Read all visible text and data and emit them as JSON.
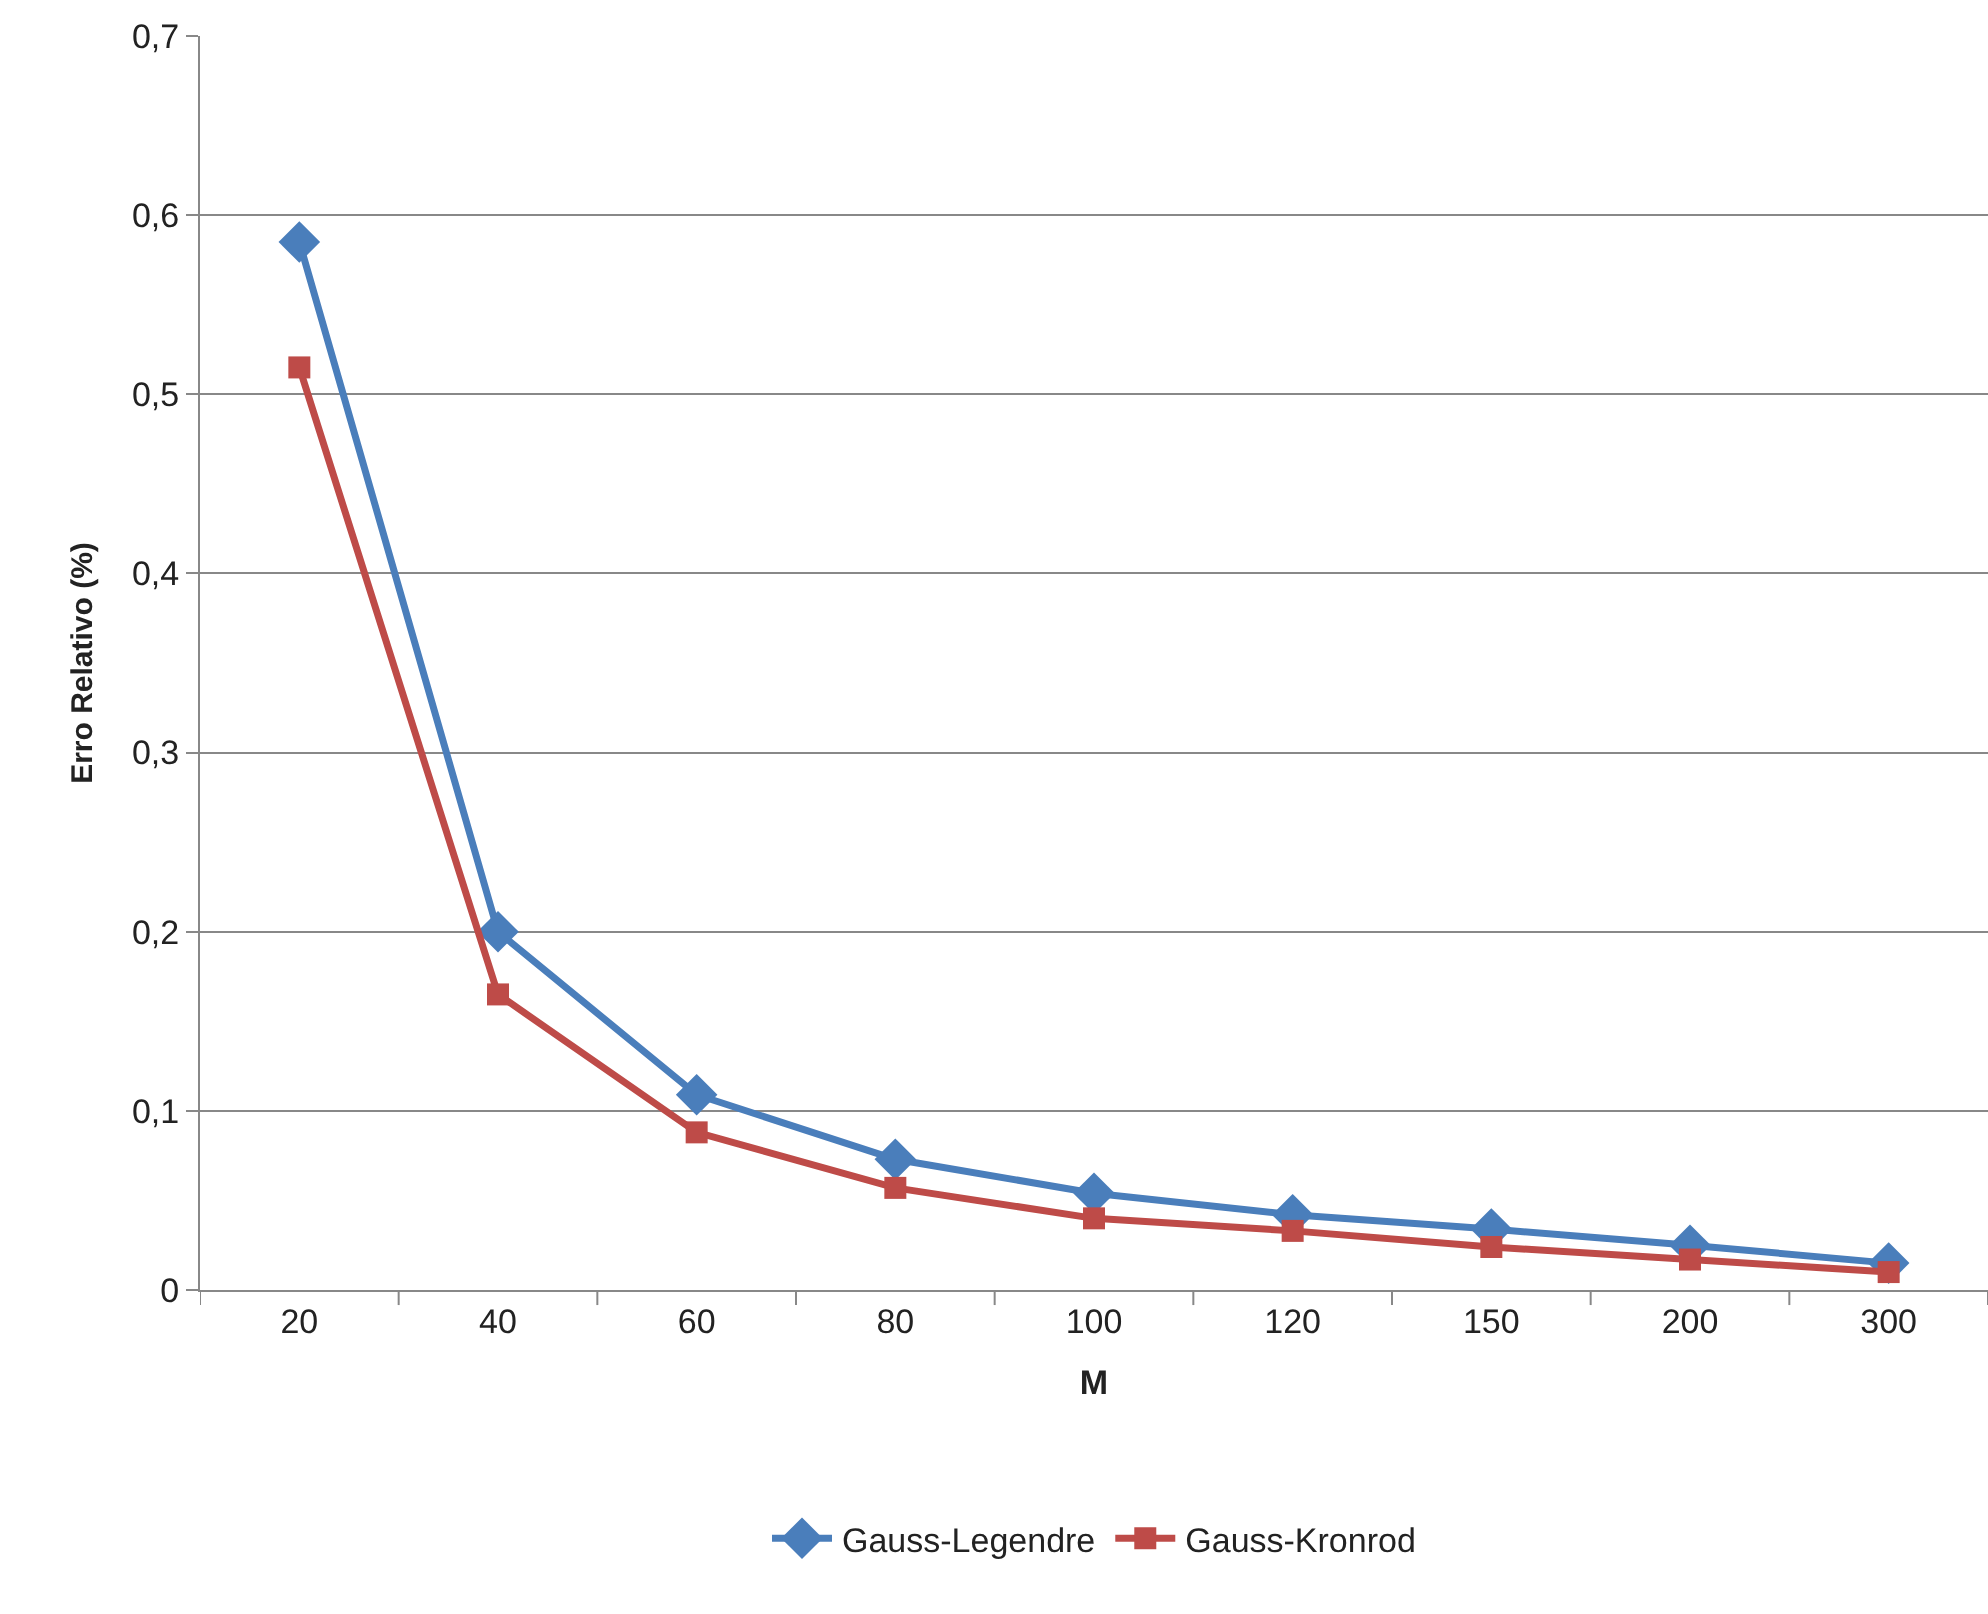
{
  "chart_data": {
    "type": "line",
    "xlabel": "M",
    "ylabel": "Erro Relativo (%)",
    "categories": [
      "20",
      "40",
      "60",
      "80",
      "100",
      "120",
      "150",
      "200",
      "300"
    ],
    "series": [
      {
        "name": "Gauss-Legendre",
        "color": "#4a7ebb",
        "marker": "diamond",
        "values": [
          0.585,
          0.2,
          0.109,
          0.073,
          0.054,
          0.042,
          0.034,
          0.025,
          0.015
        ]
      },
      {
        "name": "Gauss-Kronrod",
        "color": "#be4b48",
        "marker": "square",
        "values": [
          0.515,
          0.165,
          0.088,
          0.057,
          0.04,
          0.033,
          0.024,
          0.017,
          0.01
        ]
      }
    ],
    "ylim": [
      0,
      0.7
    ],
    "yticks": [
      0,
      {
        "value": 0.1,
        "label": "0,1"
      },
      {
        "value": 0.2,
        "label": "0,2"
      },
      {
        "value": 0.3,
        "label": "0,3"
      },
      {
        "value": 0.4,
        "label": "0,4"
      },
      {
        "value": 0.5,
        "label": "0,5"
      },
      {
        "value": 0.6,
        "label": "0,6"
      },
      {
        "value": 0.7,
        "label": "0,7"
      }
    ],
    "grid": "y",
    "legend": "bottom",
    "line_style": "solid"
  }
}
